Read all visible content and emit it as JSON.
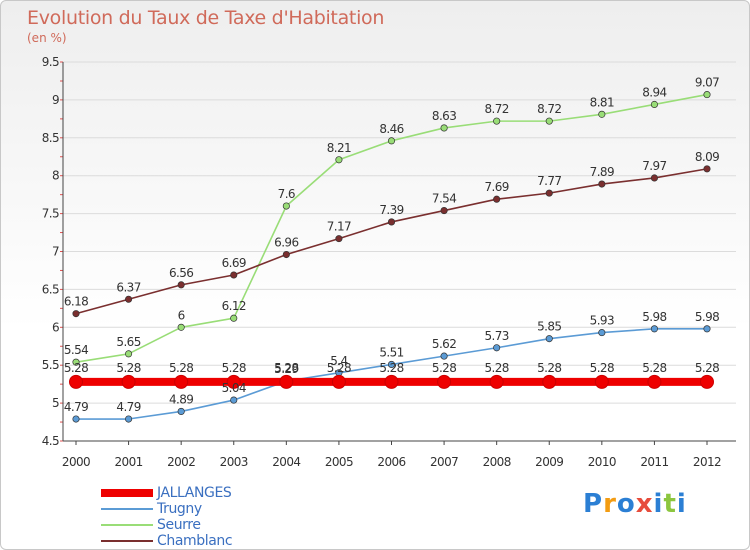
{
  "chart_data": {
    "type": "line",
    "title": "Evolution du Taux de Taxe d'Habitation",
    "subtitle": "(en %)",
    "xlabel": "",
    "ylabel": "",
    "x": [
      2000,
      2001,
      2002,
      2003,
      2004,
      2005,
      2006,
      2007,
      2008,
      2009,
      2010,
      2011,
      2012
    ],
    "x_tick_labels": [
      "2000",
      "2001",
      "2002",
      "2003",
      "2004",
      "2005",
      "2006",
      "2007",
      "2008",
      "2009",
      "2010",
      "2011",
      "2012"
    ],
    "ylim": [
      4.5,
      9.5
    ],
    "y_ticks": [
      4.5,
      5,
      5.5,
      6,
      6.5,
      7,
      7.5,
      8,
      8.5,
      9,
      9.5
    ],
    "y_tick_labels": [
      "4.5",
      "5",
      "5.5",
      "6",
      "6.5",
      "7",
      "7.5",
      "8",
      "8.5",
      "9",
      "9.5"
    ],
    "grid": "horizontal",
    "legend_position": "bottom-left",
    "series": [
      {
        "name": "JALLANGES",
        "color": "#ee0000",
        "values": [
          5.28,
          5.28,
          5.28,
          5.28,
          5.28,
          5.28,
          5.28,
          5.28,
          5.28,
          5.28,
          5.28,
          5.28,
          5.28
        ],
        "labels": [
          "5.28",
          "5.28",
          "5.28",
          "5.28",
          "5.28",
          "5.28",
          "5.28",
          "5.28",
          "5.28",
          "5.28",
          "5.28",
          "5.28",
          "5.28"
        ]
      },
      {
        "name": "Trugny",
        "color": "#5b9bd5",
        "values": [
          4.79,
          4.79,
          4.89,
          5.04,
          5.29,
          5.4,
          5.51,
          5.62,
          5.73,
          5.85,
          5.93,
          5.98,
          5.98
        ],
        "labels": [
          "4.79",
          "4.79",
          "4.89",
          "5.04",
          "5.29",
          "5.4",
          "5.51",
          "5.62",
          "5.73",
          "5.85",
          "5.93",
          "5.98",
          "5.98"
        ]
      },
      {
        "name": "Seurre",
        "color": "#99dd77",
        "values": [
          5.54,
          5.65,
          6,
          6.12,
          7.6,
          8.21,
          8.46,
          8.63,
          8.72,
          8.72,
          8.81,
          8.94,
          9.07
        ],
        "labels": [
          "5.54",
          "5.65",
          "6",
          "6.12",
          "7.6",
          "8.21",
          "8.46",
          "8.63",
          "8.72",
          "8.72",
          "8.81",
          "8.94",
          "9.07"
        ]
      },
      {
        "name": "Chamblanc",
        "color": "#7a2f2f",
        "values": [
          6.18,
          6.37,
          6.56,
          6.69,
          6.96,
          7.17,
          7.39,
          7.54,
          7.69,
          7.77,
          7.89,
          7.97,
          8.09
        ],
        "labels": [
          "6.18",
          "6.37",
          "6.56",
          "6.69",
          "6.96",
          "7.17",
          "7.39",
          "7.54",
          "7.69",
          "7.77",
          "7.89",
          "7.97",
          "8.09"
        ]
      }
    ]
  },
  "logo": {
    "letters": [
      "P",
      "r",
      "o",
      "x",
      "i",
      "t",
      "i"
    ],
    "colors": [
      "#2b7fd4",
      "#f39c12",
      "#2b7fd4",
      "#e74c3c",
      "#2b7fd4",
      "#8cc63f",
      "#2b7fd4"
    ]
  }
}
